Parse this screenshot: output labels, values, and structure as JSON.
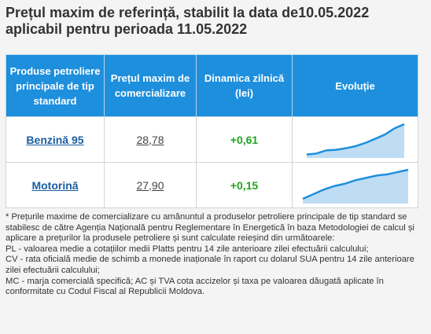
{
  "title": "Prețul maxim de referință, stabilit la data de10.05.2022 aplicabil pentru perioada 11.05.2022",
  "table": {
    "headers": [
      "Produse petroliere principale de tip standard",
      "Prețul maxim de comercializare",
      "Dinamica zilnică (lei)",
      "Evoluție"
    ],
    "rows": [
      {
        "product": "Benzină 95",
        "price": "28,78",
        "dynamic": "+0,61",
        "trend": [
          2,
          4,
          10,
          11,
          14,
          18,
          24,
          32,
          40,
          52,
          60
        ]
      },
      {
        "product": "Motorină",
        "price": "27,90",
        "dynamic": "+0,15",
        "trend": [
          4,
          12,
          20,
          26,
          30,
          36,
          40,
          44,
          46,
          50,
          54
        ]
      }
    ],
    "colors": {
      "header_bg": "#1e8fdc",
      "spark_line": "#1e8fdc",
      "spark_fill": "#bfdcf5",
      "positive": "#1fa31f"
    }
  },
  "notes": [
    "* Prețurile maxime de comercializare cu amănuntul a produselor petroliere principale de tip standard se stabilesc de către Agenția Națională pentru Reglementare în Energetică în baza Metodologiei de calcul și aplicare a prețurilor la produsele petroliere și sunt calculate reieșind din următoarele:",
    "PL - valoarea medie a cotațiilor medii Platts pentru 14 zile anterioare zilei efectuării calculului;",
    "CV - rata oficială medie de schimb a monede inaționale în raport cu dolarul SUA pentru 14 zile anterioare zilei efectuării calculului;",
    "MC - marja comercială specifică; AC și TVA cota accizelor și taxa pe valoarea dăugată aplicate în conformitate cu Codul Fiscal al Republicii Moldova."
  ]
}
